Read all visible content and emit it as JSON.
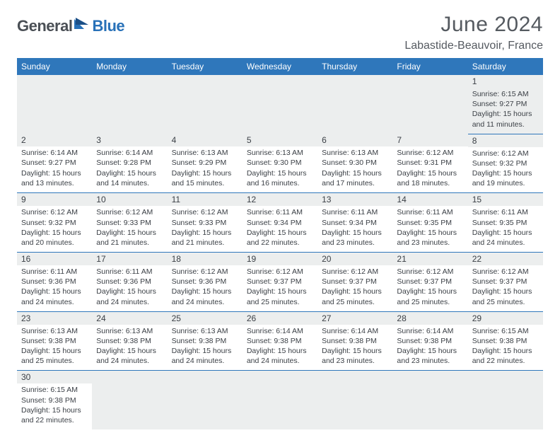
{
  "branding": {
    "part1": "General",
    "part2": "Blue",
    "text_color1": "#4a4f55",
    "text_color2": "#2871b8"
  },
  "title": "June 2024",
  "location": "Labastide-Beauvoir, France",
  "header_bg": "#2f77bb",
  "daynum_bg": "#eceeee",
  "border_color": "#2f77bb",
  "columns": [
    "Sunday",
    "Monday",
    "Tuesday",
    "Wednesday",
    "Thursday",
    "Friday",
    "Saturday"
  ],
  "weeks": [
    [
      null,
      null,
      null,
      null,
      null,
      null,
      {
        "n": "1",
        "sunrise": "6:15 AM",
        "sunset": "9:27 PM",
        "daylight": "15 hours and 11 minutes."
      }
    ],
    [
      {
        "n": "2",
        "sunrise": "6:14 AM",
        "sunset": "9:27 PM",
        "daylight": "15 hours and 13 minutes."
      },
      {
        "n": "3",
        "sunrise": "6:14 AM",
        "sunset": "9:28 PM",
        "daylight": "15 hours and 14 minutes."
      },
      {
        "n": "4",
        "sunrise": "6:13 AM",
        "sunset": "9:29 PM",
        "daylight": "15 hours and 15 minutes."
      },
      {
        "n": "5",
        "sunrise": "6:13 AM",
        "sunset": "9:30 PM",
        "daylight": "15 hours and 16 minutes."
      },
      {
        "n": "6",
        "sunrise": "6:13 AM",
        "sunset": "9:30 PM",
        "daylight": "15 hours and 17 minutes."
      },
      {
        "n": "7",
        "sunrise": "6:12 AM",
        "sunset": "9:31 PM",
        "daylight": "15 hours and 18 minutes."
      },
      {
        "n": "8",
        "sunrise": "6:12 AM",
        "sunset": "9:32 PM",
        "daylight": "15 hours and 19 minutes."
      }
    ],
    [
      {
        "n": "9",
        "sunrise": "6:12 AM",
        "sunset": "9:32 PM",
        "daylight": "15 hours and 20 minutes."
      },
      {
        "n": "10",
        "sunrise": "6:12 AM",
        "sunset": "9:33 PM",
        "daylight": "15 hours and 21 minutes."
      },
      {
        "n": "11",
        "sunrise": "6:12 AM",
        "sunset": "9:33 PM",
        "daylight": "15 hours and 21 minutes."
      },
      {
        "n": "12",
        "sunrise": "6:11 AM",
        "sunset": "9:34 PM",
        "daylight": "15 hours and 22 minutes."
      },
      {
        "n": "13",
        "sunrise": "6:11 AM",
        "sunset": "9:34 PM",
        "daylight": "15 hours and 23 minutes."
      },
      {
        "n": "14",
        "sunrise": "6:11 AM",
        "sunset": "9:35 PM",
        "daylight": "15 hours and 23 minutes."
      },
      {
        "n": "15",
        "sunrise": "6:11 AM",
        "sunset": "9:35 PM",
        "daylight": "15 hours and 24 minutes."
      }
    ],
    [
      {
        "n": "16",
        "sunrise": "6:11 AM",
        "sunset": "9:36 PM",
        "daylight": "15 hours and 24 minutes."
      },
      {
        "n": "17",
        "sunrise": "6:11 AM",
        "sunset": "9:36 PM",
        "daylight": "15 hours and 24 minutes."
      },
      {
        "n": "18",
        "sunrise": "6:12 AM",
        "sunset": "9:36 PM",
        "daylight": "15 hours and 24 minutes."
      },
      {
        "n": "19",
        "sunrise": "6:12 AM",
        "sunset": "9:37 PM",
        "daylight": "15 hours and 25 minutes."
      },
      {
        "n": "20",
        "sunrise": "6:12 AM",
        "sunset": "9:37 PM",
        "daylight": "15 hours and 25 minutes."
      },
      {
        "n": "21",
        "sunrise": "6:12 AM",
        "sunset": "9:37 PM",
        "daylight": "15 hours and 25 minutes."
      },
      {
        "n": "22",
        "sunrise": "6:12 AM",
        "sunset": "9:37 PM",
        "daylight": "15 hours and 25 minutes."
      }
    ],
    [
      {
        "n": "23",
        "sunrise": "6:13 AM",
        "sunset": "9:38 PM",
        "daylight": "15 hours and 25 minutes."
      },
      {
        "n": "24",
        "sunrise": "6:13 AM",
        "sunset": "9:38 PM",
        "daylight": "15 hours and 24 minutes."
      },
      {
        "n": "25",
        "sunrise": "6:13 AM",
        "sunset": "9:38 PM",
        "daylight": "15 hours and 24 minutes."
      },
      {
        "n": "26",
        "sunrise": "6:14 AM",
        "sunset": "9:38 PM",
        "daylight": "15 hours and 24 minutes."
      },
      {
        "n": "27",
        "sunrise": "6:14 AM",
        "sunset": "9:38 PM",
        "daylight": "15 hours and 23 minutes."
      },
      {
        "n": "28",
        "sunrise": "6:14 AM",
        "sunset": "9:38 PM",
        "daylight": "15 hours and 23 minutes."
      },
      {
        "n": "29",
        "sunrise": "6:15 AM",
        "sunset": "9:38 PM",
        "daylight": "15 hours and 22 minutes."
      }
    ],
    [
      {
        "n": "30",
        "sunrise": "6:15 AM",
        "sunset": "9:38 PM",
        "daylight": "15 hours and 22 minutes."
      },
      null,
      null,
      null,
      null,
      null,
      null
    ]
  ],
  "labels": {
    "sunrise": "Sunrise:",
    "sunset": "Sunset:",
    "daylight": "Daylight:"
  }
}
